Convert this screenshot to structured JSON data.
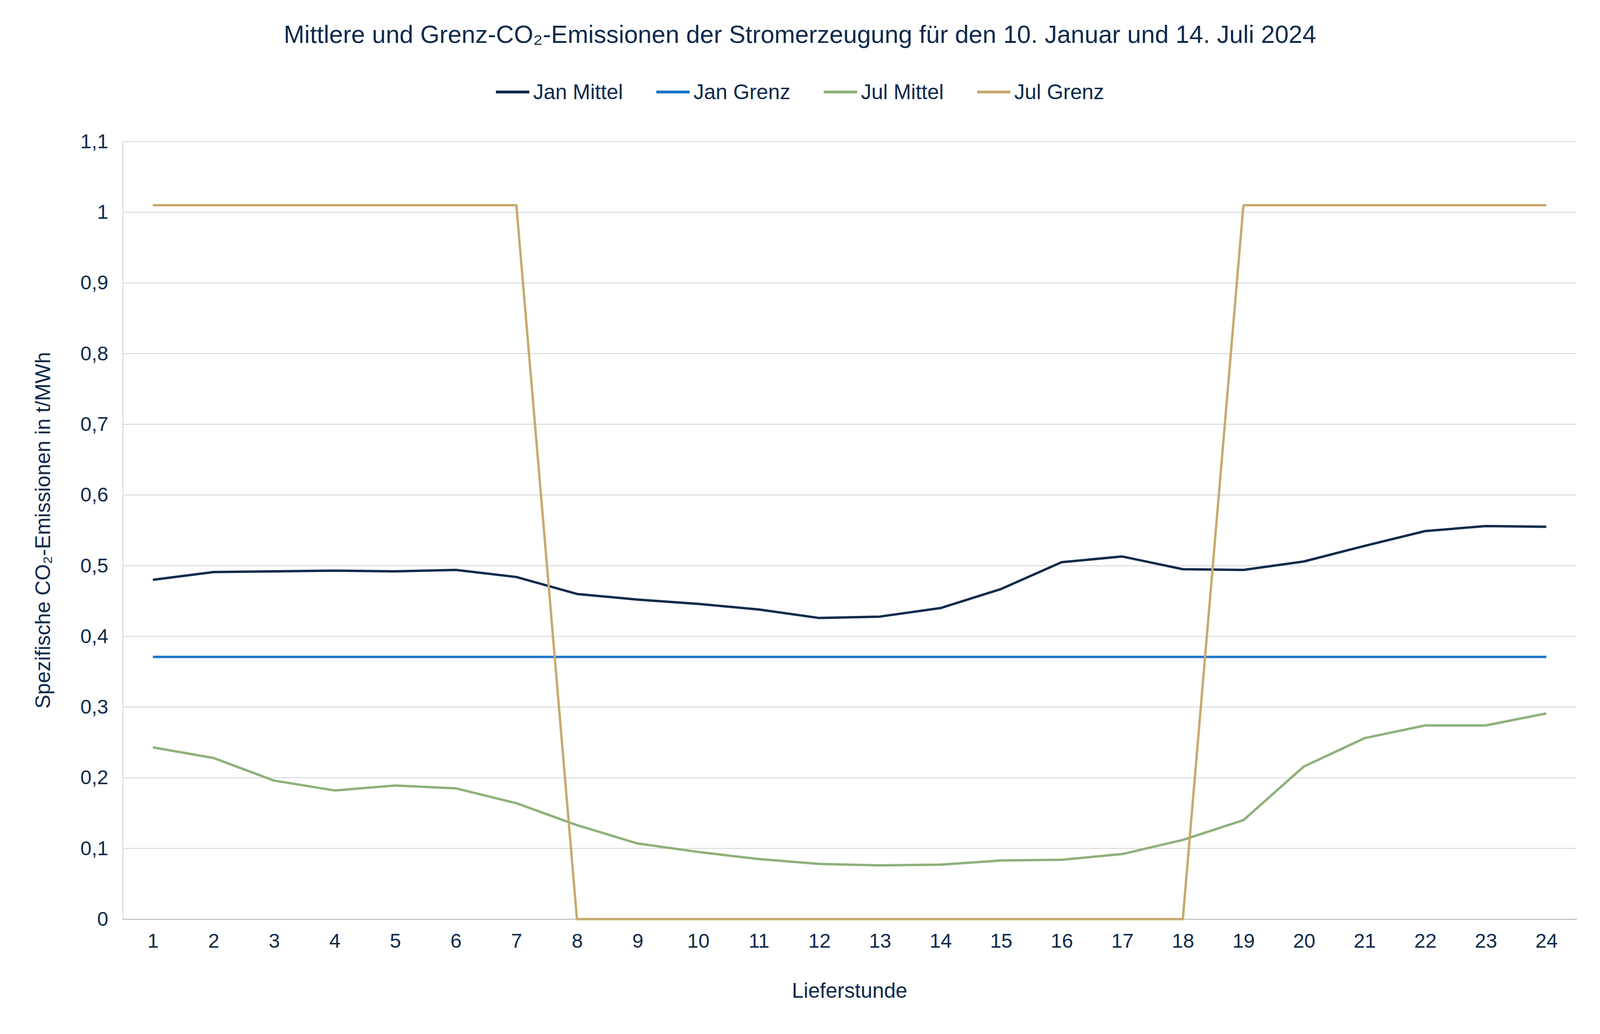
{
  "chart_data": {
    "type": "line",
    "title": "Mittlere und Grenz-CO₂-Emissionen der Stromerzeugung für den 10. Januar und 14. Juli 2024",
    "x_label": "Lieferstunde",
    "y_label": "Spezifische CO₂-Emissionen in t/MWh",
    "categories": [
      "1",
      "2",
      "3",
      "4",
      "5",
      "6",
      "7",
      "8",
      "9",
      "10",
      "11",
      "12",
      "13",
      "14",
      "15",
      "16",
      "17",
      "18",
      "19",
      "20",
      "21",
      "22",
      "23",
      "24"
    ],
    "series": [
      {
        "name": "Jan Mittel",
        "color": "#0e2a4b",
        "values": [
          0.48,
          0.491,
          0.492,
          0.493,
          0.492,
          0.494,
          0.484,
          0.46,
          0.452,
          0.446,
          0.438,
          0.426,
          0.428,
          0.44,
          0.467,
          0.505,
          0.513,
          0.495,
          0.494,
          0.506,
          0.528,
          0.549,
          0.556,
          0.555
        ]
      },
      {
        "name": "Jan Grenz",
        "color": "#1a74c9",
        "values": [
          0.371,
          0.371,
          0.371,
          0.371,
          0.371,
          0.371,
          0.371,
          0.371,
          0.371,
          0.371,
          0.371,
          0.371,
          0.371,
          0.371,
          0.371,
          0.371,
          0.371,
          0.371,
          0.371,
          0.371,
          0.371,
          0.371,
          0.371,
          0.371
        ]
      },
      {
        "name": "Jul Mittel",
        "color": "#8fb07a",
        "values": [
          0.243,
          0.228,
          0.196,
          0.182,
          0.189,
          0.185,
          0.164,
          0.133,
          0.107,
          0.095,
          0.085,
          0.078,
          0.076,
          0.077,
          0.083,
          0.084,
          0.092,
          0.112,
          0.14,
          0.216,
          0.256,
          0.274,
          0.274,
          0.291
        ]
      },
      {
        "name": "Jul Grenz",
        "color": "#c8a96e",
        "values": [
          1.01,
          1.01,
          1.01,
          1.01,
          1.01,
          1.01,
          1.01,
          0,
          0,
          0,
          0,
          0,
          0,
          0,
          0,
          0,
          0,
          0,
          1.01,
          1.01,
          1.01,
          1.01,
          1.01,
          1.01
        ]
      }
    ],
    "ylim": [
      0,
      1.1
    ],
    "yticks": [
      0,
      {
        "value": 0.1,
        "label": "0,1"
      },
      {
        "value": 0.2,
        "label": "0,2"
      },
      {
        "value": 0.3,
        "label": "0,3"
      },
      {
        "value": 0.4,
        "label": "0,4"
      },
      {
        "value": 0.5,
        "label": "0,5"
      },
      {
        "value": 0.6,
        "label": "0,6"
      },
      {
        "value": 0.7,
        "label": "0,7"
      },
      {
        "value": 0.8,
        "label": "0,8"
      },
      {
        "value": 0.9,
        "label": "0,9"
      },
      1,
      {
        "value": 1.1,
        "label": "1,1"
      }
    ],
    "grid": true,
    "legend": "top"
  }
}
